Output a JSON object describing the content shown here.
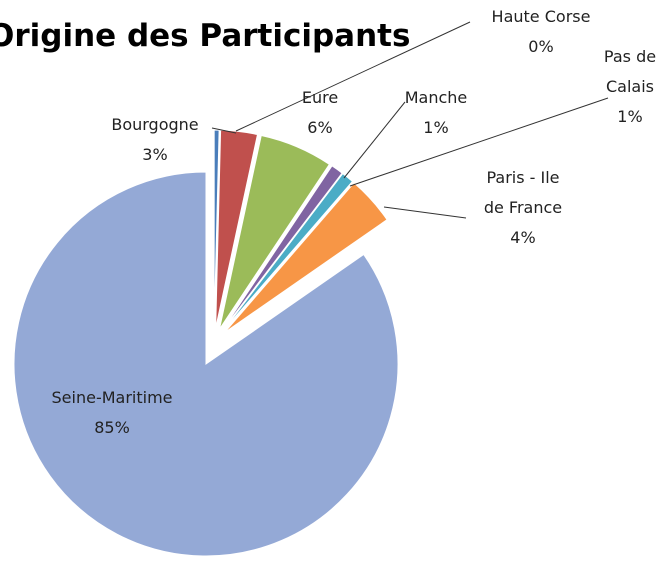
{
  "chart_data": {
    "type": "pie",
    "title": "Origine des Participants",
    "categories": [
      "Haute Corse",
      "Bourgogne",
      "Eure",
      "Manche",
      "Pas de Calais",
      "Paris - Ile de France",
      "Seine-Maritime"
    ],
    "values": [
      0.4,
      3,
      6,
      1,
      1,
      4,
      85
    ],
    "value_labels": [
      "0%",
      "3%",
      "6%",
      "1%",
      "1%",
      "4%",
      "85%"
    ],
    "colors": [
      "#4a7ebb",
      "#c0504d",
      "#9bbb59",
      "#8064a2",
      "#4bacc6",
      "#f79646",
      "#94a9d6"
    ]
  }
}
